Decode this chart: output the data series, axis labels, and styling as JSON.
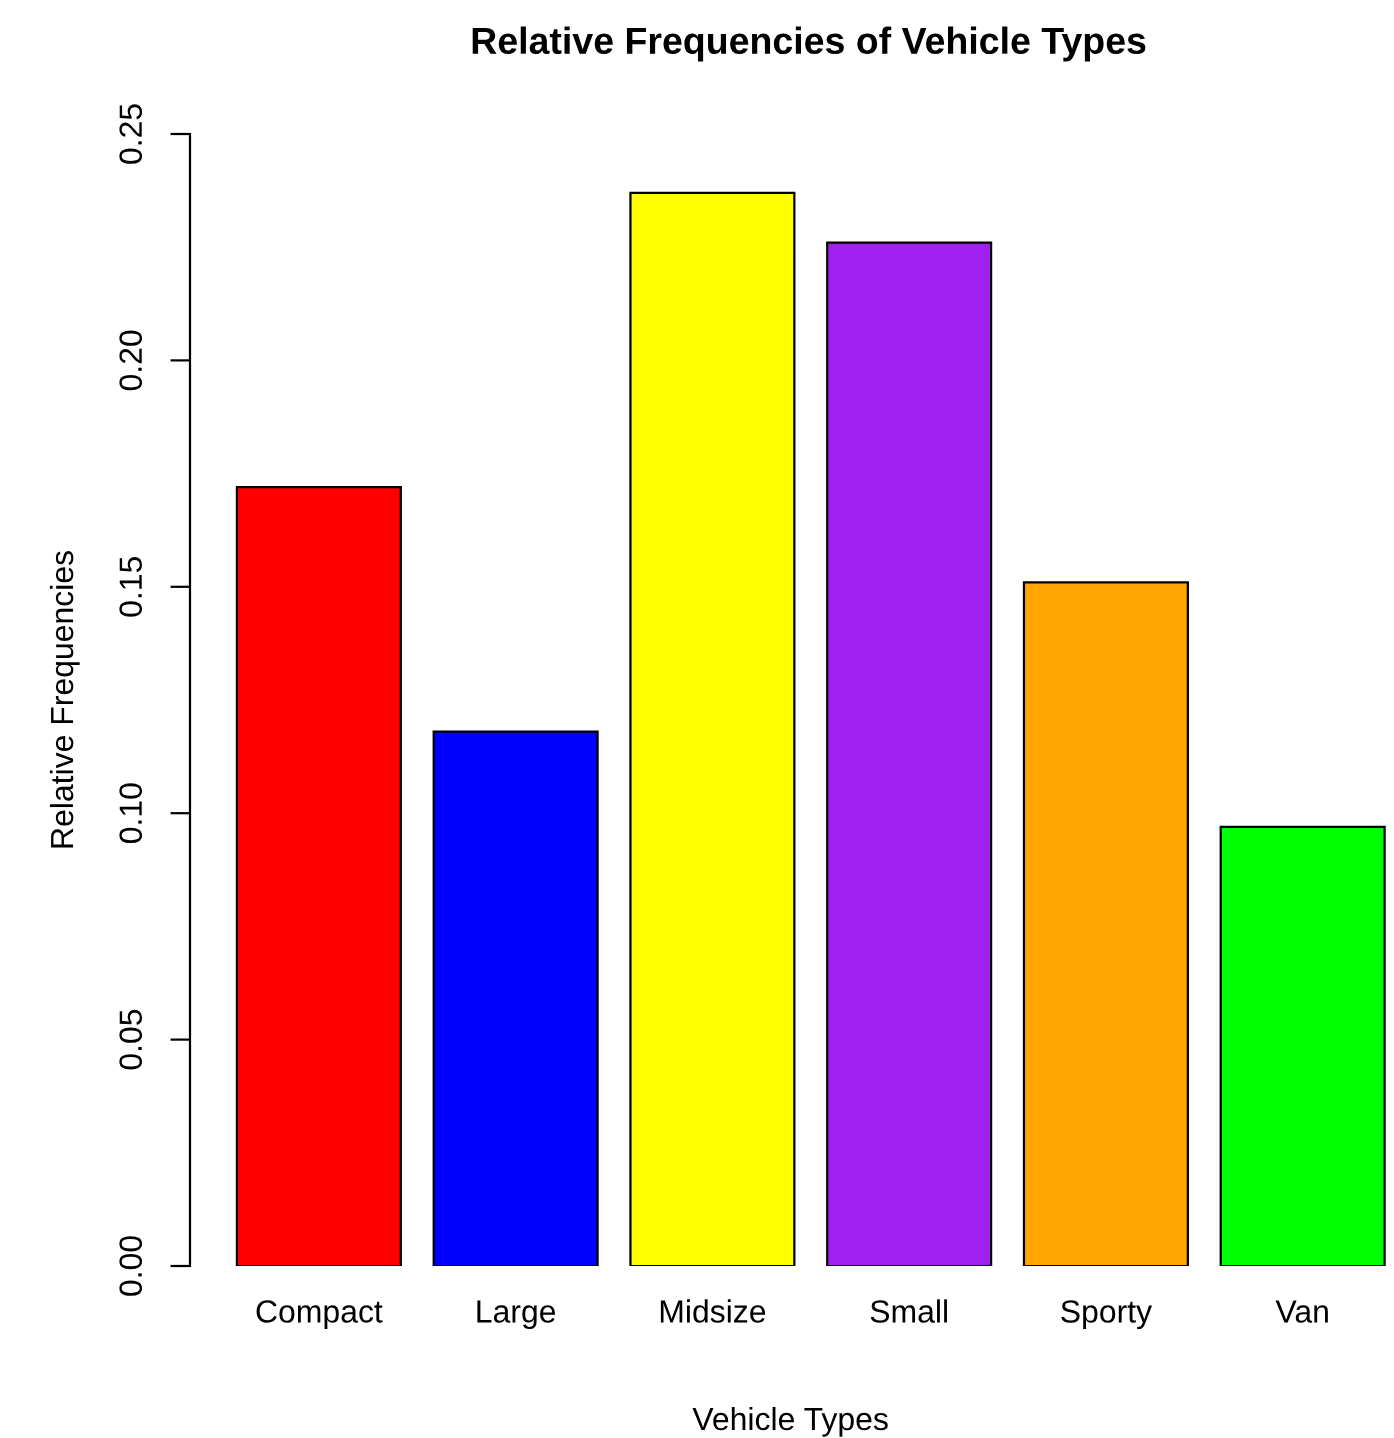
{
  "chart_data": {
    "type": "bar",
    "title": "Relative Frequencies of Vehicle Types",
    "xlabel": "Vehicle Types",
    "ylabel": "Relative Frequencies",
    "categories": [
      "Compact",
      "Large",
      "Midsize",
      "Small",
      "Sporty",
      "Van"
    ],
    "values": [
      0.172,
      0.118,
      0.237,
      0.226,
      0.151,
      0.097
    ],
    "colors": [
      "#ff0000",
      "#0000ff",
      "#ffff00",
      "#a020f0",
      "#ffa500",
      "#00ff00"
    ],
    "ylim": [
      0,
      0.25
    ],
    "yticks": [
      {
        "value": 0,
        "label": "0.00"
      },
      {
        "value": 0.05,
        "label": "0.05"
      },
      {
        "value": 0.1,
        "label": "0.10"
      },
      {
        "value": 0.15,
        "label": "0.15"
      },
      {
        "value": 0.2,
        "label": "0.20"
      },
      {
        "value": 0.25,
        "label": "0.25"
      }
    ],
    "grid": false,
    "legend": false
  }
}
